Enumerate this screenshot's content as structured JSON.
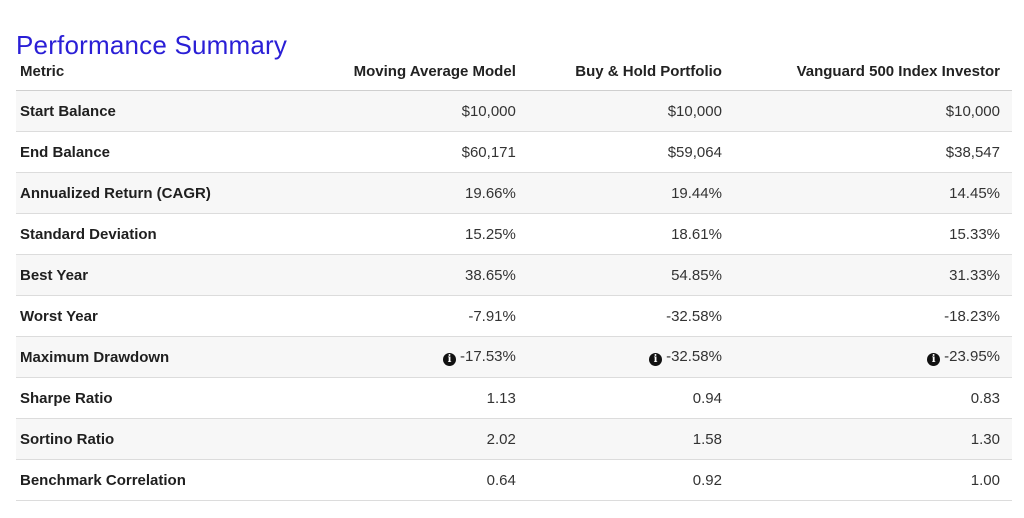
{
  "title": "Performance Summary",
  "columns": [
    "Metric",
    "Moving Average Model",
    "Buy & Hold Portfolio",
    "Vanguard 500 Index Investor"
  ],
  "rows": [
    {
      "metric": "Start Balance",
      "values": [
        "$10,000",
        "$10,000",
        "$10,000"
      ],
      "info": false
    },
    {
      "metric": "End Balance",
      "values": [
        "$60,171",
        "$59,064",
        "$38,547"
      ],
      "info": false
    },
    {
      "metric": "Annualized Return (CAGR)",
      "values": [
        "19.66%",
        "19.44%",
        "14.45%"
      ],
      "info": false
    },
    {
      "metric": "Standard Deviation",
      "values": [
        "15.25%",
        "18.61%",
        "15.33%"
      ],
      "info": false
    },
    {
      "metric": "Best Year",
      "values": [
        "38.65%",
        "54.85%",
        "31.33%"
      ],
      "info": false
    },
    {
      "metric": "Worst Year",
      "values": [
        "-7.91%",
        "-32.58%",
        "-18.23%"
      ],
      "info": false
    },
    {
      "metric": "Maximum Drawdown",
      "values": [
        "-17.53%",
        "-32.58%",
        "-23.95%"
      ],
      "info": true
    },
    {
      "metric": "Sharpe Ratio",
      "values": [
        "1.13",
        "0.94",
        "0.83"
      ],
      "info": false
    },
    {
      "metric": "Sortino Ratio",
      "values": [
        "2.02",
        "1.58",
        "1.30"
      ],
      "info": false
    },
    {
      "metric": "Benchmark Correlation",
      "values": [
        "0.64",
        "0.92",
        "1.00"
      ],
      "info": false
    }
  ],
  "icons": {
    "info": "info-circle-icon",
    "info_glyph": "i"
  },
  "colors": {
    "title": "#2a1fd6",
    "row_stripe": "#f7f7f7",
    "divider": "#dcdcdc"
  }
}
